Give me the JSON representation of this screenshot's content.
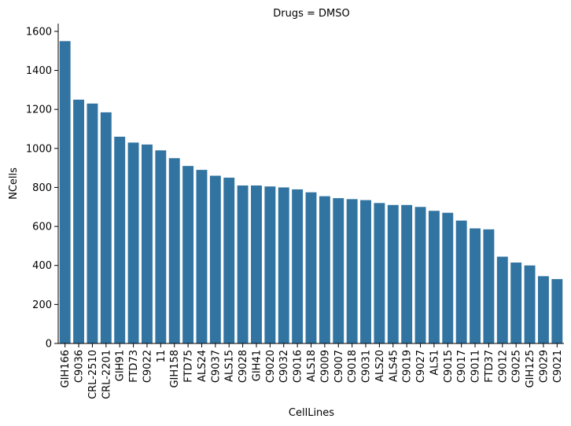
{
  "chart_data": {
    "type": "bar",
    "title": "Drugs = DMSO",
    "xlabel": "CellLines",
    "ylabel": "NCells",
    "ylim": [
      0,
      1640
    ],
    "yticks": [
      0,
      200,
      400,
      600,
      800,
      1000,
      1200,
      1400,
      1600
    ],
    "grid": false,
    "bar_color": "#3274a1",
    "categories": [
      "GIH166",
      "C9036",
      "CRL-2510",
      "CRL-2201",
      "GIH91",
      "FTD73",
      "C9022",
      "11",
      "GIH158",
      "FTD75",
      "ALS24",
      "C9037",
      "ALS15",
      "C9028",
      "GIH41",
      "C9020",
      "C9032",
      "C9016",
      "ALS18",
      "C9009",
      "C9007",
      "C9018",
      "C9031",
      "ALS20",
      "ALS45",
      "C9019",
      "C9027",
      "ALS1",
      "C9015",
      "C9017",
      "C9011",
      "FTD37",
      "C9012",
      "C9025",
      "GIH125",
      "C9029",
      "C9021"
    ],
    "values": [
      1550,
      1250,
      1230,
      1185,
      1060,
      1030,
      1020,
      990,
      950,
      910,
      890,
      860,
      850,
      810,
      810,
      805,
      800,
      790,
      775,
      755,
      745,
      740,
      735,
      720,
      710,
      710,
      700,
      680,
      670,
      630,
      590,
      585,
      445,
      415,
      400,
      345,
      330
    ]
  }
}
